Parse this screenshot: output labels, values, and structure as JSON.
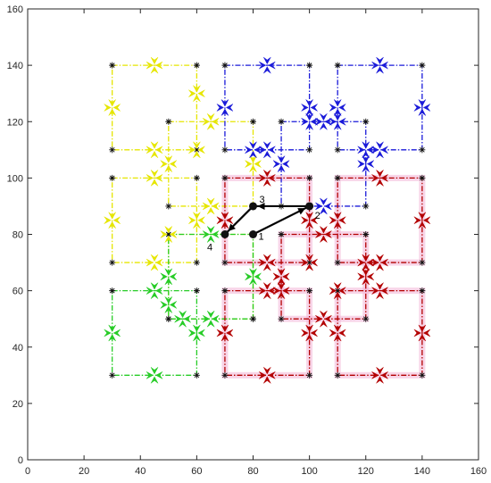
{
  "chart_data": {
    "type": "line",
    "title": "",
    "xlabel": "",
    "ylabel": "",
    "xlim": [
      0,
      160
    ],
    "ylim": [
      0,
      160
    ],
    "xticks": [
      0,
      20,
      40,
      60,
      80,
      100,
      120,
      140,
      160
    ],
    "yticks": [
      0,
      20,
      40,
      60,
      80,
      100,
      120,
      140,
      160
    ],
    "grid": false,
    "colors": {
      "yellow": "#e6e600",
      "blue": "#1a1ad9",
      "green": "#26cc26",
      "red": "#b30000",
      "highlight": "#f3b3d6",
      "path": "#000000"
    },
    "groups": [
      {
        "color": "yellow",
        "squares": [
          [
            30,
            110,
            60,
            140
          ],
          [
            50,
            90,
            80,
            120
          ],
          [
            30,
            70,
            60,
            100
          ],
          [
            50,
            50,
            80,
            80
          ]
        ],
        "arrow_points": [
          [
            45,
            140
          ],
          [
            60,
            130
          ],
          [
            30,
            125
          ],
          [
            45,
            110
          ],
          [
            65,
            120
          ],
          [
            80,
            105
          ],
          [
            50,
            105
          ],
          [
            65,
            90
          ],
          [
            45,
            100
          ],
          [
            60,
            85
          ],
          [
            30,
            85
          ],
          [
            45,
            70
          ],
          [
            60,
            110
          ],
          [
            50,
            80
          ]
        ]
      },
      {
        "color": "blue",
        "squares": [
          [
            70,
            110,
            100,
            140
          ],
          [
            110,
            110,
            140,
            140
          ],
          [
            90,
            90,
            120,
            120
          ]
        ],
        "arrow_points": [
          [
            70,
            125
          ],
          [
            85,
            140
          ],
          [
            100,
            125
          ],
          [
            85,
            110
          ],
          [
            110,
            125
          ],
          [
            125,
            140
          ],
          [
            140,
            125
          ],
          [
            125,
            110
          ],
          [
            90,
            105
          ],
          [
            105,
            120
          ],
          [
            120,
            105
          ],
          [
            105,
            90
          ],
          [
            80,
            110
          ],
          [
            100,
            120
          ],
          [
            110,
            120
          ],
          [
            120,
            110
          ]
        ]
      },
      {
        "color": "green",
        "squares": [
          [
            30,
            30,
            60,
            60
          ],
          [
            50,
            50,
            80,
            80
          ]
        ],
        "arrow_points": [
          [
            30,
            45
          ],
          [
            45,
            60
          ],
          [
            60,
            45
          ],
          [
            45,
            30
          ],
          [
            50,
            65
          ],
          [
            65,
            80
          ],
          [
            80,
            65
          ],
          [
            65,
            50
          ],
          [
            50,
            55
          ],
          [
            55,
            50
          ]
        ]
      },
      {
        "color": "red",
        "squares": [
          [
            70,
            70,
            100,
            100
          ],
          [
            110,
            70,
            140,
            100
          ],
          [
            90,
            50,
            120,
            80
          ],
          [
            70,
            30,
            100,
            60
          ],
          [
            110,
            30,
            140,
            60
          ]
        ],
        "arrow_points": [
          [
            70,
            85
          ],
          [
            85,
            100
          ],
          [
            100,
            85
          ],
          [
            85,
            70
          ],
          [
            110,
            85
          ],
          [
            125,
            100
          ],
          [
            140,
            85
          ],
          [
            125,
            70
          ],
          [
            90,
            65
          ],
          [
            105,
            80
          ],
          [
            120,
            65
          ],
          [
            105,
            50
          ],
          [
            70,
            45
          ],
          [
            85,
            60
          ],
          [
            100,
            45
          ],
          [
            85,
            30
          ],
          [
            110,
            45
          ],
          [
            125,
            60
          ],
          [
            140,
            45
          ],
          [
            125,
            30
          ],
          [
            100,
            70
          ],
          [
            110,
            60
          ],
          [
            90,
            60
          ],
          [
            120,
            70
          ]
        ]
      }
    ],
    "path_points": [
      {
        "label": "1",
        "x": 80,
        "y": 80
      },
      {
        "label": "2",
        "x": 100,
        "y": 90
      },
      {
        "label": "3",
        "x": 80,
        "y": 90
      },
      {
        "label": "4",
        "x": 70,
        "y": 80
      }
    ]
  }
}
